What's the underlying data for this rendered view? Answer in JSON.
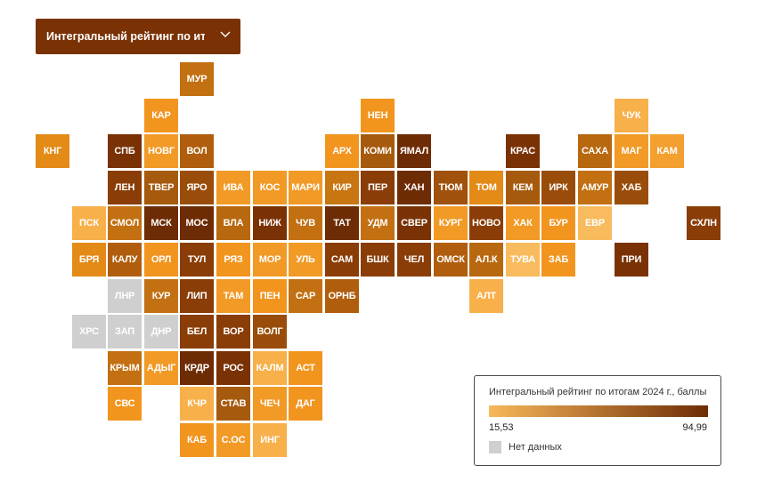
{
  "dropdown": {
    "label": "Интегральный рейтинг по ито...",
    "icon": "chevron-down-icon"
  },
  "colors": {
    "scale_min": "#f7b85a",
    "scale_max": "#6e2c05",
    "no_data": "#cfcfcf",
    "dropdown_bg": "#7a3205"
  },
  "legend": {
    "title": "Интегральный рейтинг по итогам 2024 г., баллы",
    "min": "15,53",
    "max": "94,99",
    "min_value": 15.53,
    "max_value": 94.99,
    "no_data_label": "Нет данных"
  },
  "regions": [
    {
      "code": "МУР",
      "col": 5,
      "row": 0,
      "color": "#c27012"
    },
    {
      "code": "КАР",
      "col": 4,
      "row": 1,
      "color": "#f2951f"
    },
    {
      "code": "НЕН",
      "col": 10,
      "row": 1,
      "color": "#f2951f"
    },
    {
      "code": "ЧУК",
      "col": 17,
      "row": 1,
      "color": "#f7b04a"
    },
    {
      "code": "КНГ",
      "col": 1,
      "row": 2,
      "color": "#e48a17"
    },
    {
      "code": "СПБ",
      "col": 3,
      "row": 2,
      "color": "#7a3205"
    },
    {
      "code": "НОВГ",
      "col": 4,
      "row": 2,
      "color": "#f19a26"
    },
    {
      "code": "ВОЛ",
      "col": 5,
      "row": 2,
      "color": "#b05e0e"
    },
    {
      "code": "АРХ",
      "col": 9,
      "row": 2,
      "color": "#f2951f"
    },
    {
      "code": "КОМИ",
      "col": 10,
      "row": 2,
      "color": "#a65a0e"
    },
    {
      "code": "ЯМАЛ",
      "col": 11,
      "row": 2,
      "color": "#6e2c05"
    },
    {
      "code": "КРАС",
      "col": 14,
      "row": 2,
      "color": "#7a3205"
    },
    {
      "code": "САХА",
      "col": 16,
      "row": 2,
      "color": "#b8680f"
    },
    {
      "code": "МАГ",
      "col": 17,
      "row": 2,
      "color": "#f19a26"
    },
    {
      "code": "КАМ",
      "col": 18,
      "row": 2,
      "color": "#f3a030"
    },
    {
      "code": "ЛЕН",
      "col": 3,
      "row": 3,
      "color": "#8a3d07"
    },
    {
      "code": "ТВЕР",
      "col": 4,
      "row": 3,
      "color": "#a65a0e"
    },
    {
      "code": "ЯРО",
      "col": 5,
      "row": 3,
      "color": "#9a4d0a"
    },
    {
      "code": "ИВА",
      "col": 6,
      "row": 3,
      "color": "#f19a26"
    },
    {
      "code": "КОС",
      "col": 7,
      "row": 3,
      "color": "#f19a26"
    },
    {
      "code": "МАРИ",
      "col": 8,
      "row": 3,
      "color": "#f19a26"
    },
    {
      "code": "КИР",
      "col": 9,
      "row": 3,
      "color": "#c87612"
    },
    {
      "code": "ПЕР",
      "col": 10,
      "row": 3,
      "color": "#8a3d07"
    },
    {
      "code": "ХАН",
      "col": 11,
      "row": 3,
      "color": "#6e2c05"
    },
    {
      "code": "ТЮМ",
      "col": 12,
      "row": 3,
      "color": "#a0520c"
    },
    {
      "code": "ТОМ",
      "col": 13,
      "row": 3,
      "color": "#e38a17"
    },
    {
      "code": "КЕМ",
      "col": 14,
      "row": 3,
      "color": "#a65a0e"
    },
    {
      "code": "ИРК",
      "col": 15,
      "row": 3,
      "color": "#9a4d0a"
    },
    {
      "code": "АМУР",
      "col": 16,
      "row": 3,
      "color": "#c27012"
    },
    {
      "code": "ХАБ",
      "col": 17,
      "row": 3,
      "color": "#9a4d0a"
    },
    {
      "code": "ПСК",
      "col": 2,
      "row": 4,
      "color": "#f7b04a"
    },
    {
      "code": "СМОЛ",
      "col": 3,
      "row": 4,
      "color": "#c27012"
    },
    {
      "code": "МСК",
      "col": 4,
      "row": 4,
      "color": "#6e2c05"
    },
    {
      "code": "МОС",
      "col": 5,
      "row": 4,
      "color": "#6e2c05"
    },
    {
      "code": "ВЛА",
      "col": 6,
      "row": 4,
      "color": "#b8680f"
    },
    {
      "code": "НИЖ",
      "col": 7,
      "row": 4,
      "color": "#7a3205"
    },
    {
      "code": "ЧУВ",
      "col": 8,
      "row": 4,
      "color": "#c27012"
    },
    {
      "code": "ТАТ",
      "col": 9,
      "row": 4,
      "color": "#6e2c05"
    },
    {
      "code": "УДМ",
      "col": 10,
      "row": 4,
      "color": "#c27012"
    },
    {
      "code": "СВЕР",
      "col": 11,
      "row": 4,
      "color": "#7a3205"
    },
    {
      "code": "КУРГ",
      "col": 12,
      "row": 4,
      "color": "#f19a26"
    },
    {
      "code": "НОВО",
      "col": 13,
      "row": 4,
      "color": "#8a3d07"
    },
    {
      "code": "ХАК",
      "col": 14,
      "row": 4,
      "color": "#f19a26"
    },
    {
      "code": "БУР",
      "col": 15,
      "row": 4,
      "color": "#f2951f"
    },
    {
      "code": "ЕВР",
      "col": 16,
      "row": 4,
      "color": "#f8bb5e"
    },
    {
      "code": "СХЛН",
      "col": 19,
      "row": 4,
      "color": "#8a3d07"
    },
    {
      "code": "БРЯ",
      "col": 2,
      "row": 5,
      "color": "#e48a17"
    },
    {
      "code": "КАЛУ",
      "col": 3,
      "row": 5,
      "color": "#b05e0e"
    },
    {
      "code": "ОРЛ",
      "col": 4,
      "row": 5,
      "color": "#f2951f"
    },
    {
      "code": "ТУЛ",
      "col": 5,
      "row": 5,
      "color": "#8a3d07"
    },
    {
      "code": "РЯЗ",
      "col": 6,
      "row": 5,
      "color": "#f2951f"
    },
    {
      "code": "МОР",
      "col": 7,
      "row": 5,
      "color": "#f19a26"
    },
    {
      "code": "УЛЬ",
      "col": 8,
      "row": 5,
      "color": "#f19a26"
    },
    {
      "code": "САМ",
      "col": 9,
      "row": 5,
      "color": "#8a3d07"
    },
    {
      "code": "БШК",
      "col": 10,
      "row": 5,
      "color": "#8a3d07"
    },
    {
      "code": "ЧЕЛ",
      "col": 11,
      "row": 5,
      "color": "#8a3d07"
    },
    {
      "code": "ОМСК",
      "col": 12,
      "row": 5,
      "color": "#b05e0e"
    },
    {
      "code": "АЛ.К",
      "col": 13,
      "row": 5,
      "color": "#b8680f"
    },
    {
      "code": "ТУВА",
      "col": 14,
      "row": 5,
      "color": "#f8bb5e"
    },
    {
      "code": "ЗАБ",
      "col": 15,
      "row": 5,
      "color": "#f2951f"
    },
    {
      "code": "ПРИ",
      "col": 17,
      "row": 5,
      "color": "#7a3205"
    },
    {
      "code": "ЛНР",
      "col": 3,
      "row": 6,
      "color": "#cfcfcf"
    },
    {
      "code": "КУР",
      "col": 4,
      "row": 6,
      "color": "#c27012"
    },
    {
      "code": "ЛИП",
      "col": 5,
      "row": 6,
      "color": "#8a3d07"
    },
    {
      "code": "ТАМ",
      "col": 6,
      "row": 6,
      "color": "#f19a26"
    },
    {
      "code": "ПЕН",
      "col": 7,
      "row": 6,
      "color": "#f2951f"
    },
    {
      "code": "САР",
      "col": 8,
      "row": 6,
      "color": "#c27012"
    },
    {
      "code": "ОРНБ",
      "col": 9,
      "row": 6,
      "color": "#b05e0e"
    },
    {
      "code": "АЛТ",
      "col": 13,
      "row": 6,
      "color": "#f7b04a"
    },
    {
      "code": "ХРС",
      "col": 2,
      "row": 7,
      "color": "#cfcfcf"
    },
    {
      "code": "ЗАП",
      "col": 3,
      "row": 7,
      "color": "#cfcfcf"
    },
    {
      "code": "ДНР",
      "col": 4,
      "row": 7,
      "color": "#cfcfcf"
    },
    {
      "code": "БЕЛ",
      "col": 5,
      "row": 7,
      "color": "#8a3d07"
    },
    {
      "code": "ВОР",
      "col": 6,
      "row": 7,
      "color": "#8a3d07"
    },
    {
      "code": "ВОЛГ",
      "col": 7,
      "row": 7,
      "color": "#9a4d0a"
    },
    {
      "code": "КРЫМ",
      "col": 3,
      "row": 8,
      "color": "#c27012"
    },
    {
      "code": "АДЫГ",
      "col": 4,
      "row": 8,
      "color": "#f19a26"
    },
    {
      "code": "КРДР",
      "col": 5,
      "row": 8,
      "color": "#6e2c05"
    },
    {
      "code": "РОС",
      "col": 6,
      "row": 8,
      "color": "#7a3205"
    },
    {
      "code": "КАЛМ",
      "col": 7,
      "row": 8,
      "color": "#f7b04a"
    },
    {
      "code": "АСТ",
      "col": 8,
      "row": 8,
      "color": "#f2951f"
    },
    {
      "code": "СВС",
      "col": 3,
      "row": 9,
      "color": "#f2951f"
    },
    {
      "code": "КЧР",
      "col": 5,
      "row": 9,
      "color": "#f7b04a"
    },
    {
      "code": "СТАВ",
      "col": 6,
      "row": 9,
      "color": "#a65a0e"
    },
    {
      "code": "ЧЕЧ",
      "col": 7,
      "row": 9,
      "color": "#f19a26"
    },
    {
      "code": "ДАГ",
      "col": 8,
      "row": 9,
      "color": "#f2951f"
    },
    {
      "code": "КАБ",
      "col": 5,
      "row": 10,
      "color": "#f2951f"
    },
    {
      "code": "С.ОС",
      "col": 6,
      "row": 10,
      "color": "#f19a26"
    },
    {
      "code": "ИНГ",
      "col": 7,
      "row": 10,
      "color": "#f7b04a"
    }
  ]
}
